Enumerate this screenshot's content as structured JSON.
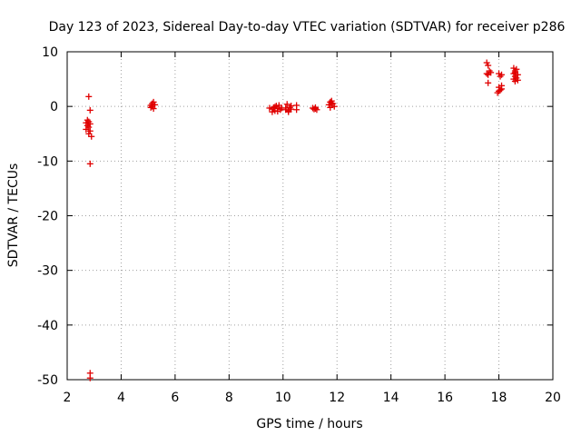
{
  "chart_data": {
    "type": "scatter",
    "title": "Day 123 of 2023, Sidereal Day-to-day VTEC variation (SDTVAR) for receiver p286",
    "xlabel": "GPS time / hours",
    "ylabel": "SDTVAR / TECUs",
    "xlim": [
      2,
      20
    ],
    "ylim": [
      -50,
      10
    ],
    "xticks": [
      "2",
      "4",
      "6",
      "8",
      "10",
      "12",
      "14",
      "16",
      "18",
      "20"
    ],
    "yticks": [
      "10",
      "0",
      "-10",
      "-20",
      "-30",
      "-40",
      "-50"
    ],
    "grid": true,
    "marker": "+",
    "color": "#e00000",
    "series": [
      {
        "name": "p286",
        "points": [
          [
            2.8,
            1.8
          ],
          [
            2.85,
            -0.7
          ],
          [
            2.75,
            -2.5
          ],
          [
            2.8,
            -2.8
          ],
          [
            2.7,
            -3.0
          ],
          [
            2.85,
            -3.2
          ],
          [
            2.75,
            -3.5
          ],
          [
            2.8,
            -3.8
          ],
          [
            2.7,
            -4.2
          ],
          [
            2.85,
            -4.5
          ],
          [
            2.8,
            -5.0
          ],
          [
            2.9,
            -5.5
          ],
          [
            2.85,
            -10.5
          ],
          [
            2.85,
            -48.8
          ],
          [
            2.85,
            -49.7
          ],
          [
            5.1,
            0.2
          ],
          [
            5.2,
            0.8
          ],
          [
            5.15,
            0.5
          ],
          [
            5.25,
            0.3
          ],
          [
            5.1,
            -0.2
          ],
          [
            5.2,
            -0.4
          ],
          [
            5.15,
            0.0
          ],
          [
            9.5,
            -0.3
          ],
          [
            9.6,
            -0.5
          ],
          [
            9.65,
            -0.2
          ],
          [
            9.7,
            -0.8
          ],
          [
            9.75,
            0.1
          ],
          [
            9.8,
            -0.4
          ],
          [
            9.85,
            0.2
          ],
          [
            9.9,
            -0.6
          ],
          [
            9.95,
            -0.3
          ],
          [
            9.6,
            -1.0
          ],
          [
            9.7,
            -0.1
          ],
          [
            9.8,
            -0.9
          ],
          [
            10.1,
            -0.3
          ],
          [
            10.15,
            0.4
          ],
          [
            10.2,
            -0.8
          ],
          [
            10.25,
            -0.2
          ],
          [
            10.3,
            0.1
          ],
          [
            10.2,
            -1.0
          ],
          [
            10.1,
            -0.6
          ],
          [
            10.3,
            -0.5
          ],
          [
            10.5,
            -0.6
          ],
          [
            10.5,
            0.2
          ],
          [
            11.1,
            -0.3
          ],
          [
            11.15,
            -0.5
          ],
          [
            11.2,
            -0.2
          ],
          [
            11.25,
            -0.6
          ],
          [
            11.2,
            -0.4
          ],
          [
            11.7,
            0.3
          ],
          [
            11.75,
            0.8
          ],
          [
            11.8,
            1.0
          ],
          [
            11.85,
            0.5
          ],
          [
            11.9,
            0.0
          ],
          [
            11.75,
            -0.2
          ],
          [
            11.8,
            0.6
          ],
          [
            17.55,
            8.0
          ],
          [
            17.6,
            7.5
          ],
          [
            17.65,
            6.5
          ],
          [
            17.55,
            6.0
          ],
          [
            17.6,
            5.8
          ],
          [
            17.7,
            6.2
          ],
          [
            17.6,
            4.3
          ],
          [
            18.0,
            6.0
          ],
          [
            18.05,
            5.5
          ],
          [
            18.1,
            5.8
          ],
          [
            18.0,
            3.5
          ],
          [
            18.05,
            3.0
          ],
          [
            18.1,
            3.2
          ],
          [
            17.95,
            2.5
          ],
          [
            18.0,
            2.8
          ],
          [
            18.1,
            3.8
          ],
          [
            18.55,
            7.0
          ],
          [
            18.6,
            6.5
          ],
          [
            18.65,
            6.8
          ],
          [
            18.55,
            6.0
          ],
          [
            18.6,
            5.5
          ],
          [
            18.7,
            5.8
          ],
          [
            18.55,
            5.0
          ],
          [
            18.6,
            4.6
          ],
          [
            18.7,
            4.8
          ],
          [
            18.65,
            5.2
          ],
          [
            18.6,
            6.2
          ]
        ]
      }
    ]
  }
}
